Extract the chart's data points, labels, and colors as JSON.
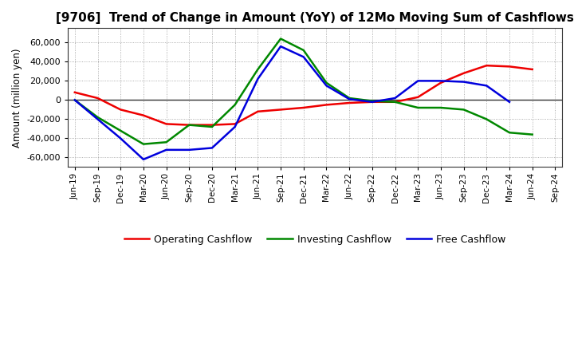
{
  "title": "[9706]  Trend of Change in Amount (YoY) of 12Mo Moving Sum of Cashflows",
  "ylabel": "Amount (million yen)",
  "x_labels": [
    "Jun-19",
    "Sep-19",
    "Dec-19",
    "Mar-20",
    "Jun-20",
    "Sep-20",
    "Dec-20",
    "Mar-21",
    "Jun-21",
    "Sep-21",
    "Dec-21",
    "Mar-22",
    "Jun-22",
    "Sep-22",
    "Dec-22",
    "Mar-23",
    "Jun-23",
    "Sep-23",
    "Dec-23",
    "Mar-24",
    "Jun-24",
    "Sep-24"
  ],
  "operating": [
    8000,
    2000,
    -10000,
    -16000,
    -25000,
    -26000,
    -26000,
    -25000,
    -12000,
    -10000,
    -8000,
    -5000,
    -3000,
    -2000,
    -2000,
    3000,
    18000,
    28000,
    36000,
    35000,
    32000,
    null
  ],
  "investing": [
    0,
    -18000,
    -32000,
    -46000,
    -44000,
    -26000,
    -28000,
    -5000,
    32000,
    64000,
    52000,
    18000,
    2000,
    -1000,
    -2000,
    -8000,
    -8000,
    -10000,
    -20000,
    -34000,
    -36000,
    null
  ],
  "free": [
    0,
    -20000,
    -40000,
    -62000,
    -52000,
    -52000,
    -50000,
    -28000,
    22000,
    56000,
    45000,
    15000,
    1000,
    -2000,
    2000,
    20000,
    20000,
    19000,
    15000,
    -2000,
    null,
    null
  ],
  "ylim": [
    -70000,
    75000
  ],
  "yticks": [
    -60000,
    -40000,
    -20000,
    0,
    20000,
    40000,
    60000
  ],
  "operating_color": "#ee0000",
  "investing_color": "#008800",
  "free_color": "#0000dd",
  "background_color": "#ffffff",
  "grid_color": "#999999",
  "linewidth": 1.8,
  "title_fontsize": 11,
  "legend_labels": [
    "Operating Cashflow",
    "Investing Cashflow",
    "Free Cashflow"
  ]
}
